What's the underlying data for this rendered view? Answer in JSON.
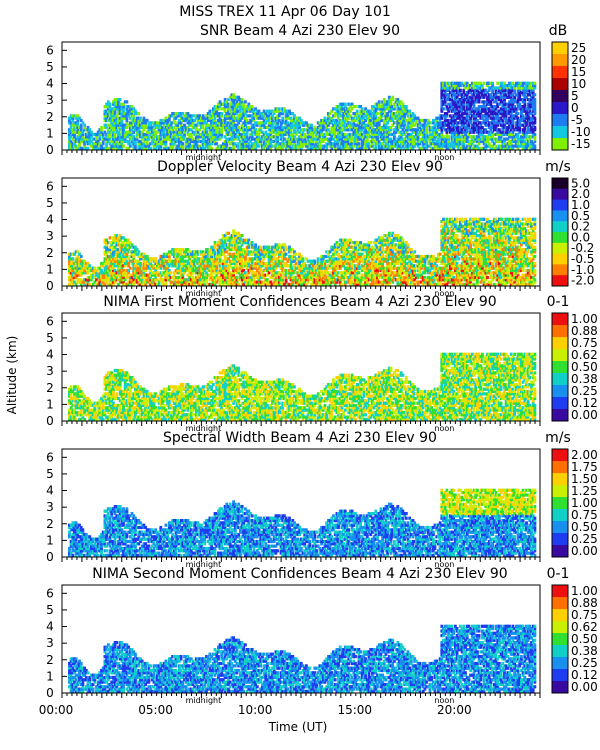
{
  "header": {
    "title": "MISS TREX    11 Apr 06 Day 101"
  },
  "axes": {
    "ylabel": "Altitude (km)",
    "xlabel": "Time (UT)",
    "x_ticks": [
      "00:00",
      "05:00",
      "10:00",
      "15:00",
      "20:00"
    ],
    "y_ticks": [
      "0",
      "1",
      "2",
      "3",
      "4",
      "5",
      "6"
    ],
    "midnight_label": "midnight",
    "noon_label": "noon"
  },
  "chart_data": [
    {
      "type": "heatmap",
      "title": "SNR Beam 4 Azi 230 Elev 90",
      "unit": "dB",
      "ylim": [
        0,
        6.5
      ],
      "xlim": [
        0,
        24
      ],
      "colorbar_labels": [
        "25",
        "20",
        "15",
        "10",
        "5",
        "0",
        "-5",
        "-10",
        "-15"
      ],
      "colors": [
        "#ffd000",
        "#ff9900",
        "#ff3300",
        "#aa0000",
        "#33005f",
        "#2a18c8",
        "#1c7cf0",
        "#12c8e0",
        "#80f000"
      ]
    },
    {
      "type": "heatmap",
      "title": "Doppler Velocity Beam 4 Azi 230 Elev 90",
      "unit": "m/s",
      "ylim": [
        0,
        6.5
      ],
      "xlim": [
        0,
        24
      ],
      "colorbar_labels": [
        "5.0",
        "2.0",
        "1.0",
        "0.5",
        "0.2",
        "0.0",
        "-0.2",
        "-0.5",
        "-1.0",
        "-2.0"
      ],
      "colors": [
        "#1a0028",
        "#3a0aa0",
        "#1e3cf0",
        "#1890f0",
        "#10d0c8",
        "#30e030",
        "#c8f000",
        "#ffd000",
        "#ff8000",
        "#ee1010"
      ]
    },
    {
      "type": "heatmap",
      "title": "NIMA First Moment Confidences Beam 4 Azi 230 Elev 90",
      "unit": "0-1",
      "ylim": [
        0,
        6.5
      ],
      "xlim": [
        0,
        24
      ],
      "colorbar_labels": [
        "1.00",
        "0.88",
        "0.75",
        "0.62",
        "0.50",
        "0.38",
        "0.25",
        "0.12",
        "0.00"
      ],
      "colors": [
        "#ee1010",
        "#ff7000",
        "#ffd000",
        "#c8f000",
        "#30e030",
        "#10d0c8",
        "#1890f0",
        "#1e3cf0",
        "#3a0aa0"
      ]
    },
    {
      "type": "heatmap",
      "title": "Spectral Width Beam 4 Azi 230 Elev 90",
      "unit": "m/s",
      "ylim": [
        0,
        6.5
      ],
      "xlim": [
        0,
        24
      ],
      "colorbar_labels": [
        "2.00",
        "1.75",
        "1.50",
        "1.25",
        "1.00",
        "0.75",
        "0.50",
        "0.25",
        "0.00"
      ],
      "colors": [
        "#ee1010",
        "#ff7000",
        "#ffd000",
        "#c8f000",
        "#30e030",
        "#10d0c8",
        "#1890f0",
        "#1e3cf0",
        "#3a0aa0"
      ]
    },
    {
      "type": "heatmap",
      "title": "NIMA Second Moment Confidences Beam 4 Azi 230 Elev 90",
      "unit": "0-1",
      "ylim": [
        0,
        6.5
      ],
      "xlim": [
        0,
        24
      ],
      "colorbar_labels": [
        "1.00",
        "0.88",
        "0.75",
        "0.62",
        "0.50",
        "0.38",
        "0.25",
        "0.12",
        "0.00"
      ],
      "colors": [
        "#ee1010",
        "#ff7000",
        "#ffd000",
        "#c8f000",
        "#30e030",
        "#10d0c8",
        "#1890f0",
        "#1e3cf0",
        "#3a0aa0"
      ]
    }
  ]
}
